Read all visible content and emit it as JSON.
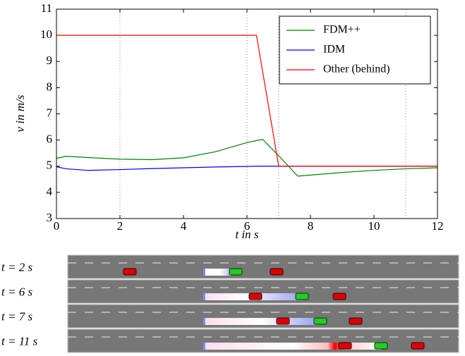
{
  "chart_data": {
    "type": "line",
    "xlabel": "t in s",
    "ylabel": "v in m/s",
    "x": [
      0,
      0.3,
      1,
      2,
      3,
      4,
      5,
      6,
      6.3,
      6.5,
      7,
      7.6,
      8,
      9,
      10,
      11,
      12
    ],
    "series": [
      {
        "name": "FDM++",
        "color": "#008000",
        "values": [
          5.3,
          5.38,
          5.33,
          5.27,
          5.25,
          5.32,
          5.55,
          5.9,
          5.98,
          6.02,
          5.4,
          4.62,
          4.66,
          4.76,
          4.84,
          4.9,
          4.94
        ]
      },
      {
        "name": "IDM",
        "color": "#0000ff",
        "values": [
          4.98,
          4.9,
          4.84,
          4.87,
          4.91,
          4.94,
          4.97,
          4.99,
          5.0,
          5.0,
          5.0,
          5.0,
          5.0,
          5.0,
          5.0,
          5.0,
          5.0
        ]
      },
      {
        "name": "Other (behind)",
        "color": "#ff0000",
        "values": [
          10,
          10,
          10,
          10,
          10,
          10,
          10,
          10,
          10,
          8.57,
          5.0,
          5.0,
          5.0,
          5.0,
          5.0,
          5.0,
          5.0
        ]
      }
    ],
    "xlim": [
      0,
      12
    ],
    "xticks": [
      0,
      2,
      4,
      6,
      8,
      10,
      12
    ],
    "ylim": [
      3,
      11
    ],
    "yticks": [
      3,
      4,
      5,
      6,
      7,
      8,
      9,
      10,
      11
    ],
    "vlines": [
      2,
      6,
      7,
      11
    ],
    "legend": "upper right",
    "snapshots": [
      "t = 2 s",
      "t = 6 s",
      "t = 7 s",
      "t = 11 s"
    ]
  }
}
